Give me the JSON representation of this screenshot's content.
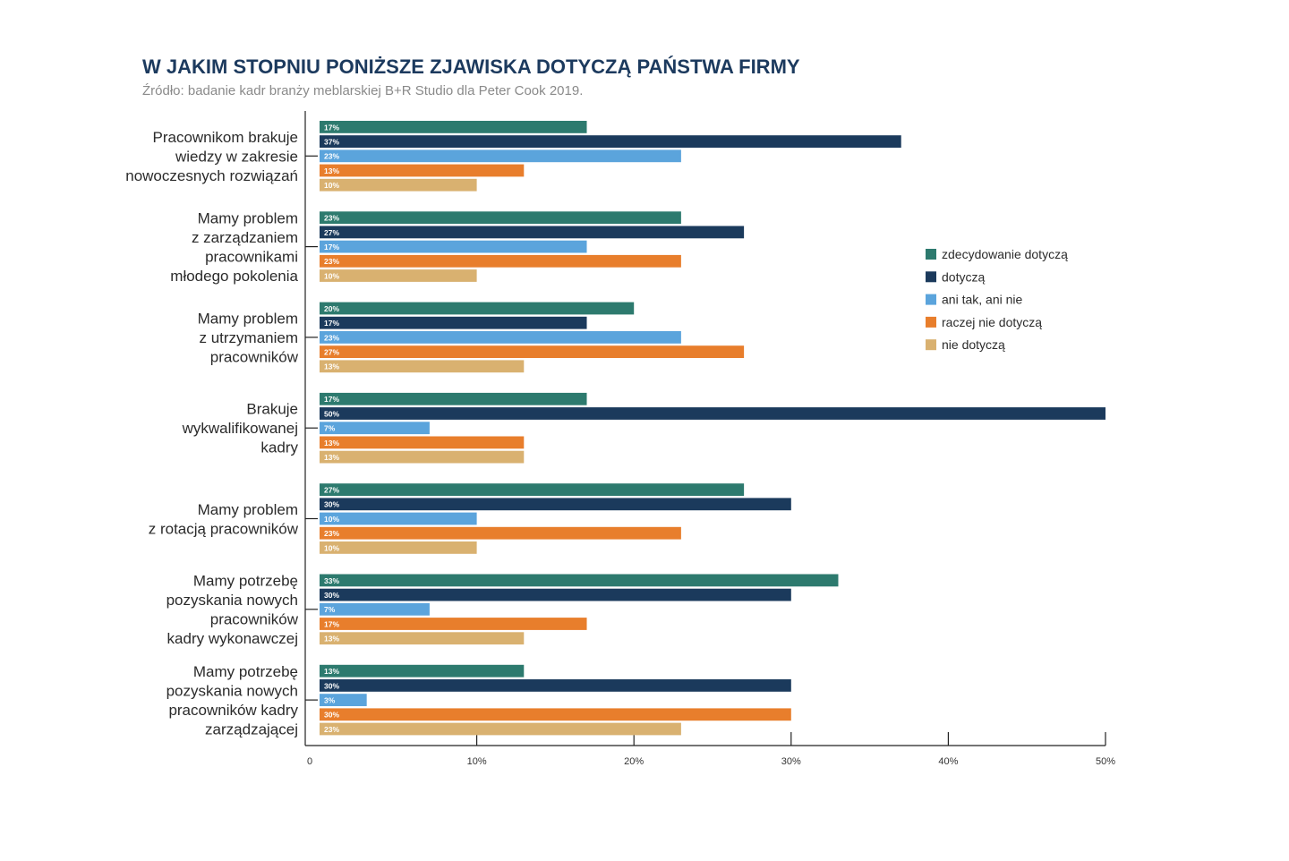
{
  "title": "W JAKIM STOPNIU PONIŻSZE ZJAWISKA DOTYCZĄ PAŃSTWA FIRMY",
  "subtitle": "Źródło: badanie kadr branży meblarskiej B+R Studio dla Peter Cook 2019.",
  "chart_data": {
    "type": "bar",
    "orientation": "horizontal",
    "xlim": [
      0,
      50
    ],
    "x_ticks": [
      "0",
      "10%",
      "20%",
      "30%",
      "40%",
      "50%"
    ],
    "legend_position": "right",
    "categories": [
      [
        "Pracownikom brakuje",
        "wiedzy w zakresie",
        "nowoczesnych rozwiązań"
      ],
      [
        "Mamy problem",
        "z zarządzaniem",
        "pracownikami",
        "młodego pokolenia"
      ],
      [
        "Mamy problem",
        "z utrzymaniem",
        "pracowników"
      ],
      [
        "Brakuje",
        "wykwalifikowanej",
        "kadry"
      ],
      [
        "Mamy problem",
        "z rotacją pracowników"
      ],
      [
        "Mamy potrzebę",
        "pozyskania nowych",
        "pracowników",
        "kadry wykonawczej"
      ],
      [
        "Mamy potrzebę",
        "pozyskania nowych",
        "pracowników kadry",
        "zarządzającej"
      ]
    ],
    "series": [
      {
        "name": "zdecydowanie dotyczą",
        "color": "#2d7a6e",
        "values": [
          17,
          23,
          20,
          17,
          27,
          33,
          13
        ]
      },
      {
        "name": "dotyczą",
        "color": "#1b3a5c",
        "values": [
          37,
          27,
          17,
          50,
          30,
          30,
          30
        ]
      },
      {
        "name": "ani tak, ani nie",
        "color": "#5ba4dc",
        "values": [
          23,
          17,
          23,
          7,
          10,
          7,
          3
        ]
      },
      {
        "name": "raczej nie dotyczą",
        "color": "#e87e2c",
        "values": [
          13,
          23,
          27,
          13,
          23,
          17,
          30
        ]
      },
      {
        "name": "nie dotyczą",
        "color": "#d9b170",
        "values": [
          10,
          10,
          13,
          13,
          10,
          13,
          23
        ]
      }
    ]
  }
}
